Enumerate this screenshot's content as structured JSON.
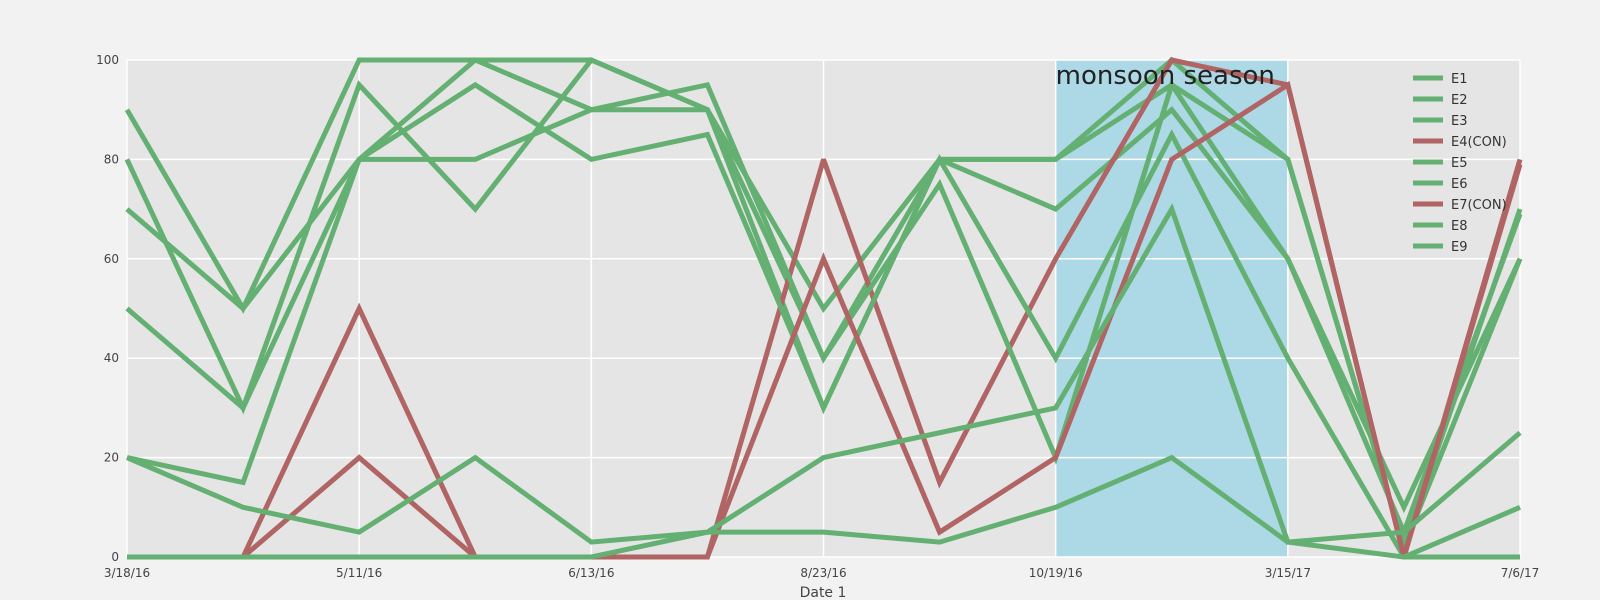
{
  "chart_data": {
    "type": "line",
    "xlabel": "Date 1",
    "ylabel": "",
    "title": "",
    "ylim": [
      0,
      100
    ],
    "y_ticks": [
      0,
      20,
      40,
      60,
      80,
      100
    ],
    "x_tick_labels": [
      "3/18/16",
      "5/11/16",
      "6/13/16",
      "8/23/16",
      "10/19/16",
      "3/15/17",
      "7/6/17"
    ],
    "x": [
      0,
      1,
      2,
      3,
      4,
      5,
      6,
      7,
      8,
      9,
      10,
      11,
      12
    ],
    "grid": true,
    "legend_position": "top-right",
    "shaded_region": {
      "x_from": 8,
      "x_to": 10,
      "color": "#add8e6"
    },
    "annotations": [
      {
        "text": "monsoon season",
        "x": 8,
        "y": 97
      }
    ],
    "colors": {
      "normal": "#64b072",
      "control": "#b06464",
      "plot_bg": "#e5e5e5",
      "figure_bg": "#f2f2f2",
      "grid": "#ffffff"
    },
    "series": [
      {
        "name": "E1",
        "kind": "normal",
        "values": [
          90,
          50,
          100,
          100,
          100,
          90,
          40,
          80,
          80,
          95,
          80,
          2,
          70
        ]
      },
      {
        "name": "E2",
        "kind": "normal",
        "values": [
          80,
          30,
          95,
          70,
          100,
          90,
          30,
          80,
          80,
          100,
          80,
          2,
          60
        ]
      },
      {
        "name": "E3",
        "kind": "normal",
        "values": [
          70,
          50,
          80,
          80,
          90,
          90,
          50,
          80,
          70,
          90,
          60,
          5,
          69
        ]
      },
      {
        "name": "E4(CON)",
        "kind": "control",
        "values": [
          0,
          0,
          50,
          0,
          0,
          0,
          80,
          15,
          60,
          100,
          95,
          0,
          80
        ]
      },
      {
        "name": "E5",
        "kind": "normal",
        "values": [
          50,
          30,
          80,
          100,
          90,
          95,
          40,
          75,
          20,
          95,
          60,
          10,
          60
        ]
      },
      {
        "name": "E6",
        "kind": "normal",
        "values": [
          20,
          15,
          80,
          95,
          80,
          85,
          30,
          80,
          40,
          85,
          40,
          0,
          0
        ]
      },
      {
        "name": "E7(CON)",
        "kind": "control",
        "values": [
          0,
          0,
          20,
          0,
          0,
          0,
          60,
          5,
          20,
          80,
          95,
          0,
          79
        ]
      },
      {
        "name": "E8",
        "kind": "normal",
        "values": [
          20,
          10,
          5,
          20,
          3,
          5,
          20,
          25,
          30,
          70,
          3,
          5,
          25
        ]
      },
      {
        "name": "E9",
        "kind": "normal",
        "values": [
          0,
          0,
          0,
          0,
          0,
          5,
          5,
          3,
          10,
          20,
          3,
          0,
          10
        ]
      }
    ]
  }
}
